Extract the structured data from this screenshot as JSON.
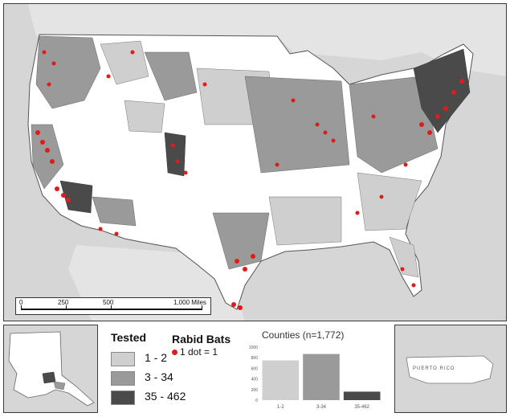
{
  "scale_bar": {
    "ticks": [
      "0",
      "250",
      "500",
      "1,000 Miles"
    ]
  },
  "legend": {
    "tested_title": "Tested",
    "rabid_title": "Rabid Bats",
    "dot_label": "1 dot = 1",
    "classes": [
      {
        "label": "1 - 2",
        "color": "#cfcfcf"
      },
      {
        "label": "3 - 34",
        "color": "#9a9a9a"
      },
      {
        "label": "35 - 462",
        "color": "#4a4a4a"
      }
    ]
  },
  "inset_labels": {
    "puerto_rico": "PUERTO RICO"
  },
  "colors": {
    "background": "#d6d6d6",
    "land_untested": "#ffffff",
    "dot": "#dd1c1c"
  },
  "chart_data": {
    "type": "bar",
    "title": "Counties (n=1,772)",
    "categories": [
      "1-2",
      "3-34",
      "35-462"
    ],
    "values": [
      750,
      870,
      160
    ],
    "colors": [
      "#cfcfcf",
      "#9a9a9a",
      "#4a4a4a"
    ],
    "ylim": [
      0,
      1000
    ],
    "yticks": [
      0,
      200,
      400,
      600,
      800,
      1000
    ],
    "xlabel": "",
    "ylabel": "",
    "grid": false,
    "legend": "none"
  }
}
